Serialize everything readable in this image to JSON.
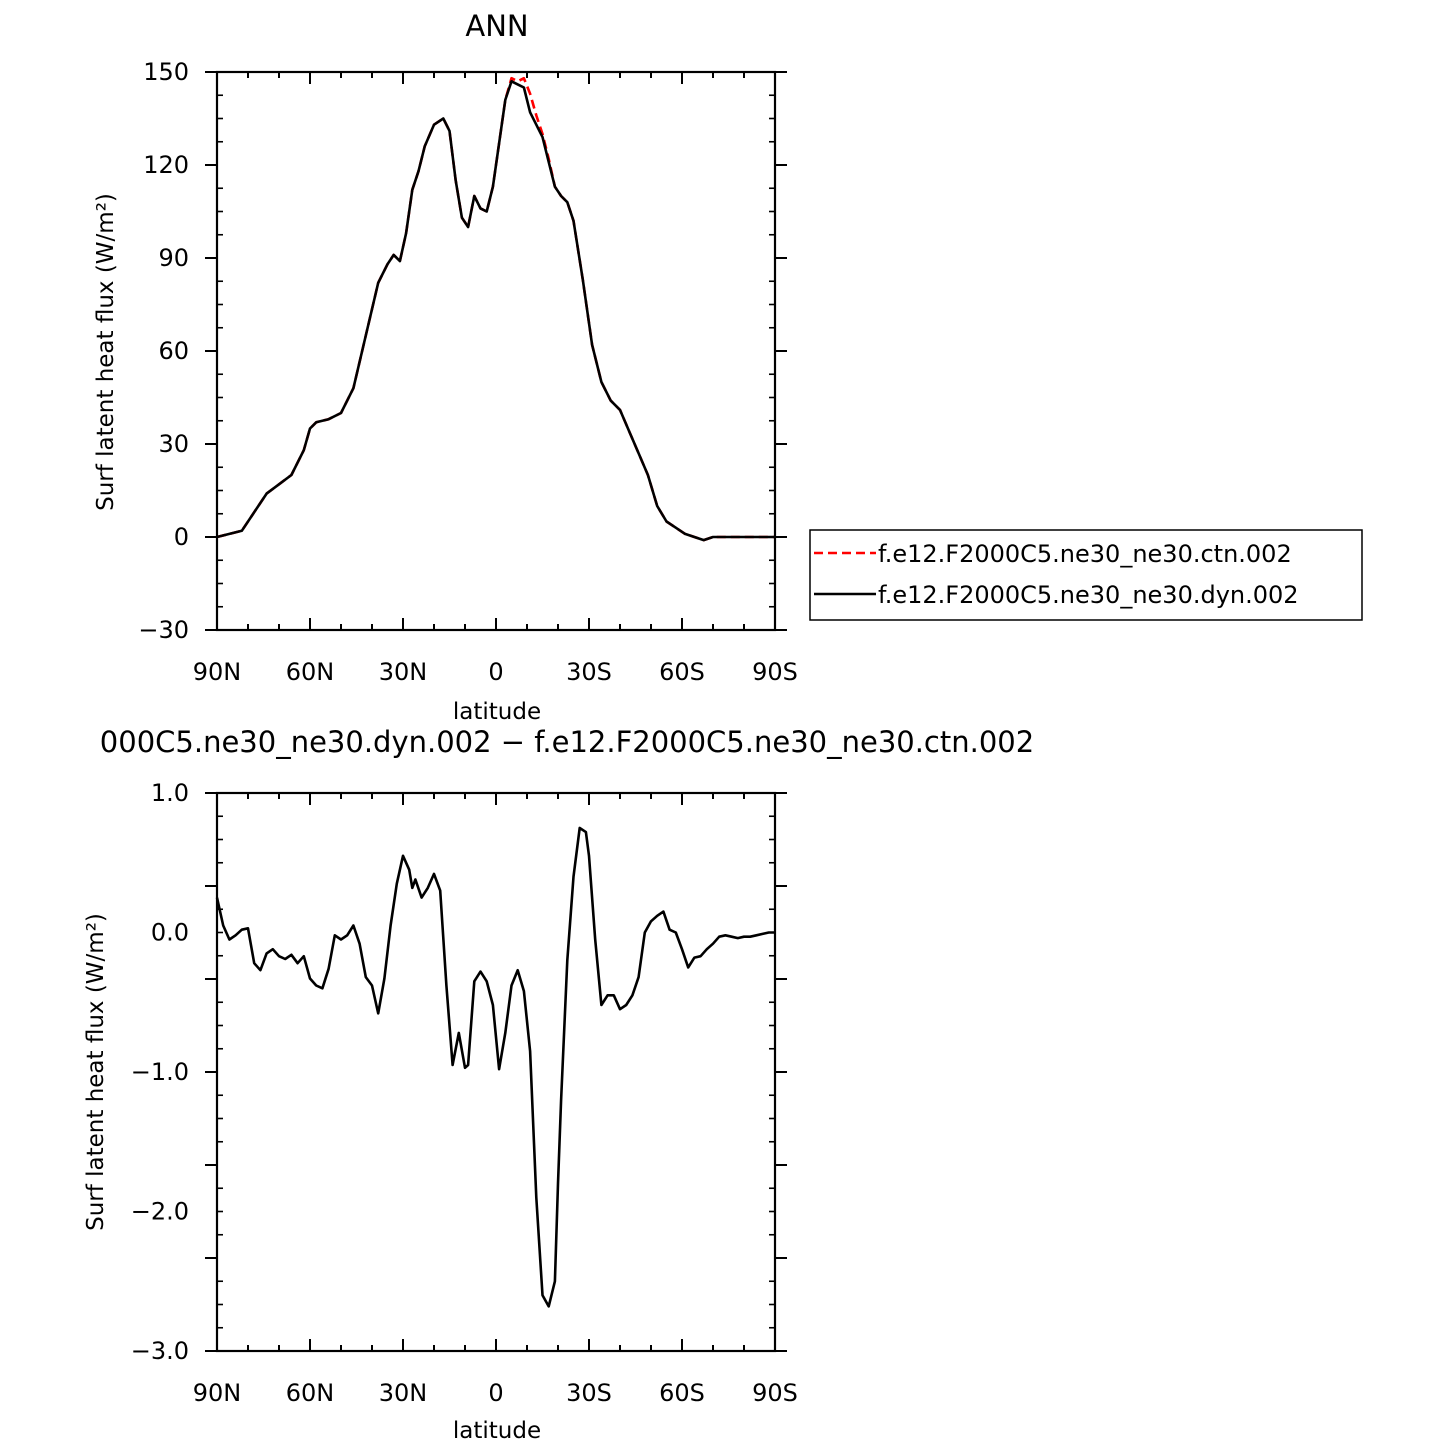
{
  "chart_data": [
    {
      "type": "line",
      "title": "ANN",
      "xlabel": "latitude",
      "ylabel": "Surf latent heat flux (W/m²)",
      "xlim": [
        90,
        -90
      ],
      "ylim": [
        -30,
        150
      ],
      "x_ticks": [
        {
          "v": 90,
          "label": "90N"
        },
        {
          "v": 60,
          "label": "60N"
        },
        {
          "v": 30,
          "label": "30N"
        },
        {
          "v": 0,
          "label": "0"
        },
        {
          "v": -30,
          "label": "30S"
        },
        {
          "v": -60,
          "label": "60S"
        },
        {
          "v": -90,
          "label": "90S"
        }
      ],
      "y_ticks": [
        {
          "v": 150,
          "label": "150"
        },
        {
          "v": 120,
          "label": "120"
        },
        {
          "v": 90,
          "label": "90"
        },
        {
          "v": 60,
          "label": "60"
        },
        {
          "v": 30,
          "label": "30"
        },
        {
          "v": 0,
          "label": "0"
        },
        {
          "v": -30,
          "label": "−30"
        }
      ],
      "grid": false,
      "legend": "right",
      "series": [
        {
          "name": "f.e12.F2000C5.ne30_ne30.ctn.002",
          "color": "#ff0000",
          "style": "dashed",
          "x": [
            90,
            86,
            82,
            78,
            74,
            70,
            66,
            62,
            60,
            58,
            54,
            50,
            46,
            42,
            38,
            35,
            33,
            31,
            29,
            27,
            25,
            23,
            20,
            17,
            15,
            13,
            11,
            9,
            7,
            5,
            3,
            1,
            -1,
            -3,
            -5,
            -7,
            -9,
            -11,
            -13,
            -15,
            -17,
            -19,
            -21,
            -23,
            -25,
            -28,
            -31,
            -34,
            -37,
            -40,
            -43,
            -46,
            -49,
            -52,
            -55,
            -58,
            -61,
            -64,
            -67,
            -70,
            -73,
            -76,
            -78,
            -80,
            -83,
            -86,
            -90
          ],
          "y": [
            0,
            1,
            2,
            8,
            14,
            17,
            20,
            28,
            35,
            37,
            38,
            40,
            48,
            65,
            82,
            88,
            91,
            89,
            98,
            112,
            118,
            126,
            133,
            135,
            131,
            115,
            103,
            100,
            110,
            106,
            105,
            113,
            127,
            141,
            148,
            147,
            148,
            143,
            136,
            130,
            122,
            113,
            110,
            108,
            102,
            83,
            62,
            50,
            44,
            41,
            34,
            27,
            20,
            10,
            5,
            3,
            1,
            0,
            -1,
            0,
            0,
            0,
            0,
            0,
            0,
            0,
            0
          ]
        },
        {
          "name": "f.e12.F2000C5.ne30_ne30.dyn.002",
          "color": "#000000",
          "style": "solid",
          "x": [
            90,
            86,
            82,
            78,
            74,
            70,
            66,
            62,
            60,
            58,
            54,
            50,
            46,
            42,
            38,
            35,
            33,
            31,
            29,
            27,
            25,
            23,
            20,
            17,
            15,
            13,
            11,
            9,
            7,
            5,
            3,
            1,
            -1,
            -3,
            -5,
            -7,
            -9,
            -11,
            -13,
            -15,
            -17,
            -19,
            -21,
            -23,
            -25,
            -28,
            -31,
            -34,
            -37,
            -40,
            -43,
            -46,
            -49,
            -52,
            -55,
            -58,
            -61,
            -64,
            -67,
            -70,
            -73,
            -76,
            -78,
            -80,
            -83,
            -86,
            -90
          ],
          "y": [
            0,
            1,
            2,
            8,
            14,
            17,
            20,
            28,
            35,
            37,
            38,
            40,
            48,
            65,
            82,
            88,
            91,
            89,
            98,
            112,
            118,
            126,
            133,
            135,
            131,
            115,
            103,
            100,
            110,
            106,
            105,
            113,
            127,
            141,
            147,
            146,
            145,
            137,
            133,
            129,
            121,
            113,
            110,
            108,
            102,
            83,
            62,
            50,
            44,
            41,
            34,
            27,
            20,
            10,
            5,
            3,
            1,
            0,
            -1,
            0,
            0,
            0,
            0,
            0,
            0,
            0,
            0
          ]
        }
      ]
    },
    {
      "type": "line",
      "title": "000C5.ne30_ne30.dyn.002 − f.e12.F2000C5.ne30_ne30.ctn.002",
      "xlabel": "latitude",
      "ylabel": "Surf latent heat flux (W/m²)",
      "xlim": [
        90,
        -90
      ],
      "ylim": [
        -3,
        1
      ],
      "x_ticks": [
        {
          "v": 90,
          "label": "90N"
        },
        {
          "v": 60,
          "label": "60N"
        },
        {
          "v": 30,
          "label": "30N"
        },
        {
          "v": 0,
          "label": "0"
        },
        {
          "v": -30,
          "label": "30S"
        },
        {
          "v": -60,
          "label": "60S"
        },
        {
          "v": -90,
          "label": "90S"
        }
      ],
      "y_ticks": [
        {
          "v": 1,
          "label": "1.0"
        },
        {
          "v": 0,
          "label": "0.0"
        },
        {
          "v": -1,
          "label": "−1.0"
        },
        {
          "v": -2,
          "label": "−2.0"
        },
        {
          "v": -3,
          "label": "−3.0"
        }
      ],
      "grid": false,
      "series": [
        {
          "color": "#000000",
          "style": "solid",
          "x": [
            90,
            88,
            86,
            84,
            82,
            80,
            78,
            76,
            74,
            72,
            70,
            68,
            66,
            64,
            62,
            60,
            58,
            56,
            54,
            52,
            50,
            48,
            46,
            44,
            42,
            40,
            38,
            36,
            34,
            32,
            30,
            28,
            27,
            26,
            24,
            22,
            20,
            18,
            16,
            14,
            12,
            10,
            9,
            7,
            5,
            3,
            1,
            -1,
            -3,
            -5,
            -7,
            -9,
            -11,
            -13,
            -15,
            -17,
            -19,
            -20,
            -21,
            -23,
            -25,
            -27,
            -29,
            -30,
            -32,
            -34,
            -36,
            -38,
            -40,
            -42,
            -44,
            -46,
            -48,
            -50,
            -52,
            -54,
            -56,
            -58,
            -60,
            -62,
            -64,
            -66,
            -68,
            -70,
            -72,
            -74,
            -76,
            -78,
            -80,
            -82,
            -84,
            -86,
            -88,
            -90
          ],
          "y": [
            0.25,
            0.05,
            -0.05,
            -0.02,
            0.02,
            0.03,
            -0.22,
            -0.27,
            -0.15,
            -0.12,
            -0.17,
            -0.19,
            -0.16,
            -0.22,
            -0.17,
            -0.33,
            -0.38,
            -0.4,
            -0.26,
            -0.02,
            -0.05,
            -0.02,
            0.05,
            -0.08,
            -0.32,
            -0.38,
            -0.58,
            -0.33,
            0.05,
            0.35,
            0.55,
            0.45,
            0.32,
            0.38,
            0.25,
            0.32,
            0.42,
            0.3,
            -0.38,
            -0.95,
            -0.72,
            -0.97,
            -0.95,
            -0.35,
            -0.28,
            -0.35,
            -0.52,
            -0.98,
            -0.72,
            -0.38,
            -0.27,
            -0.42,
            -0.85,
            -1.9,
            -2.6,
            -2.68,
            -2.5,
            -1.8,
            -1.2,
            -0.2,
            0.4,
            0.75,
            0.72,
            0.55,
            -0.05,
            -0.52,
            -0.45,
            -0.45,
            -0.55,
            -0.52,
            -0.45,
            -0.32,
            0.0,
            0.08,
            0.12,
            0.15,
            0.02,
            0.0,
            -0.12,
            -0.25,
            -0.18,
            -0.17,
            -0.12,
            -0.08,
            -0.03,
            -0.02,
            -0.03,
            -0.04,
            -0.03,
            -0.03,
            -0.02,
            -0.01,
            0.0,
            0.0
          ]
        }
      ]
    }
  ]
}
